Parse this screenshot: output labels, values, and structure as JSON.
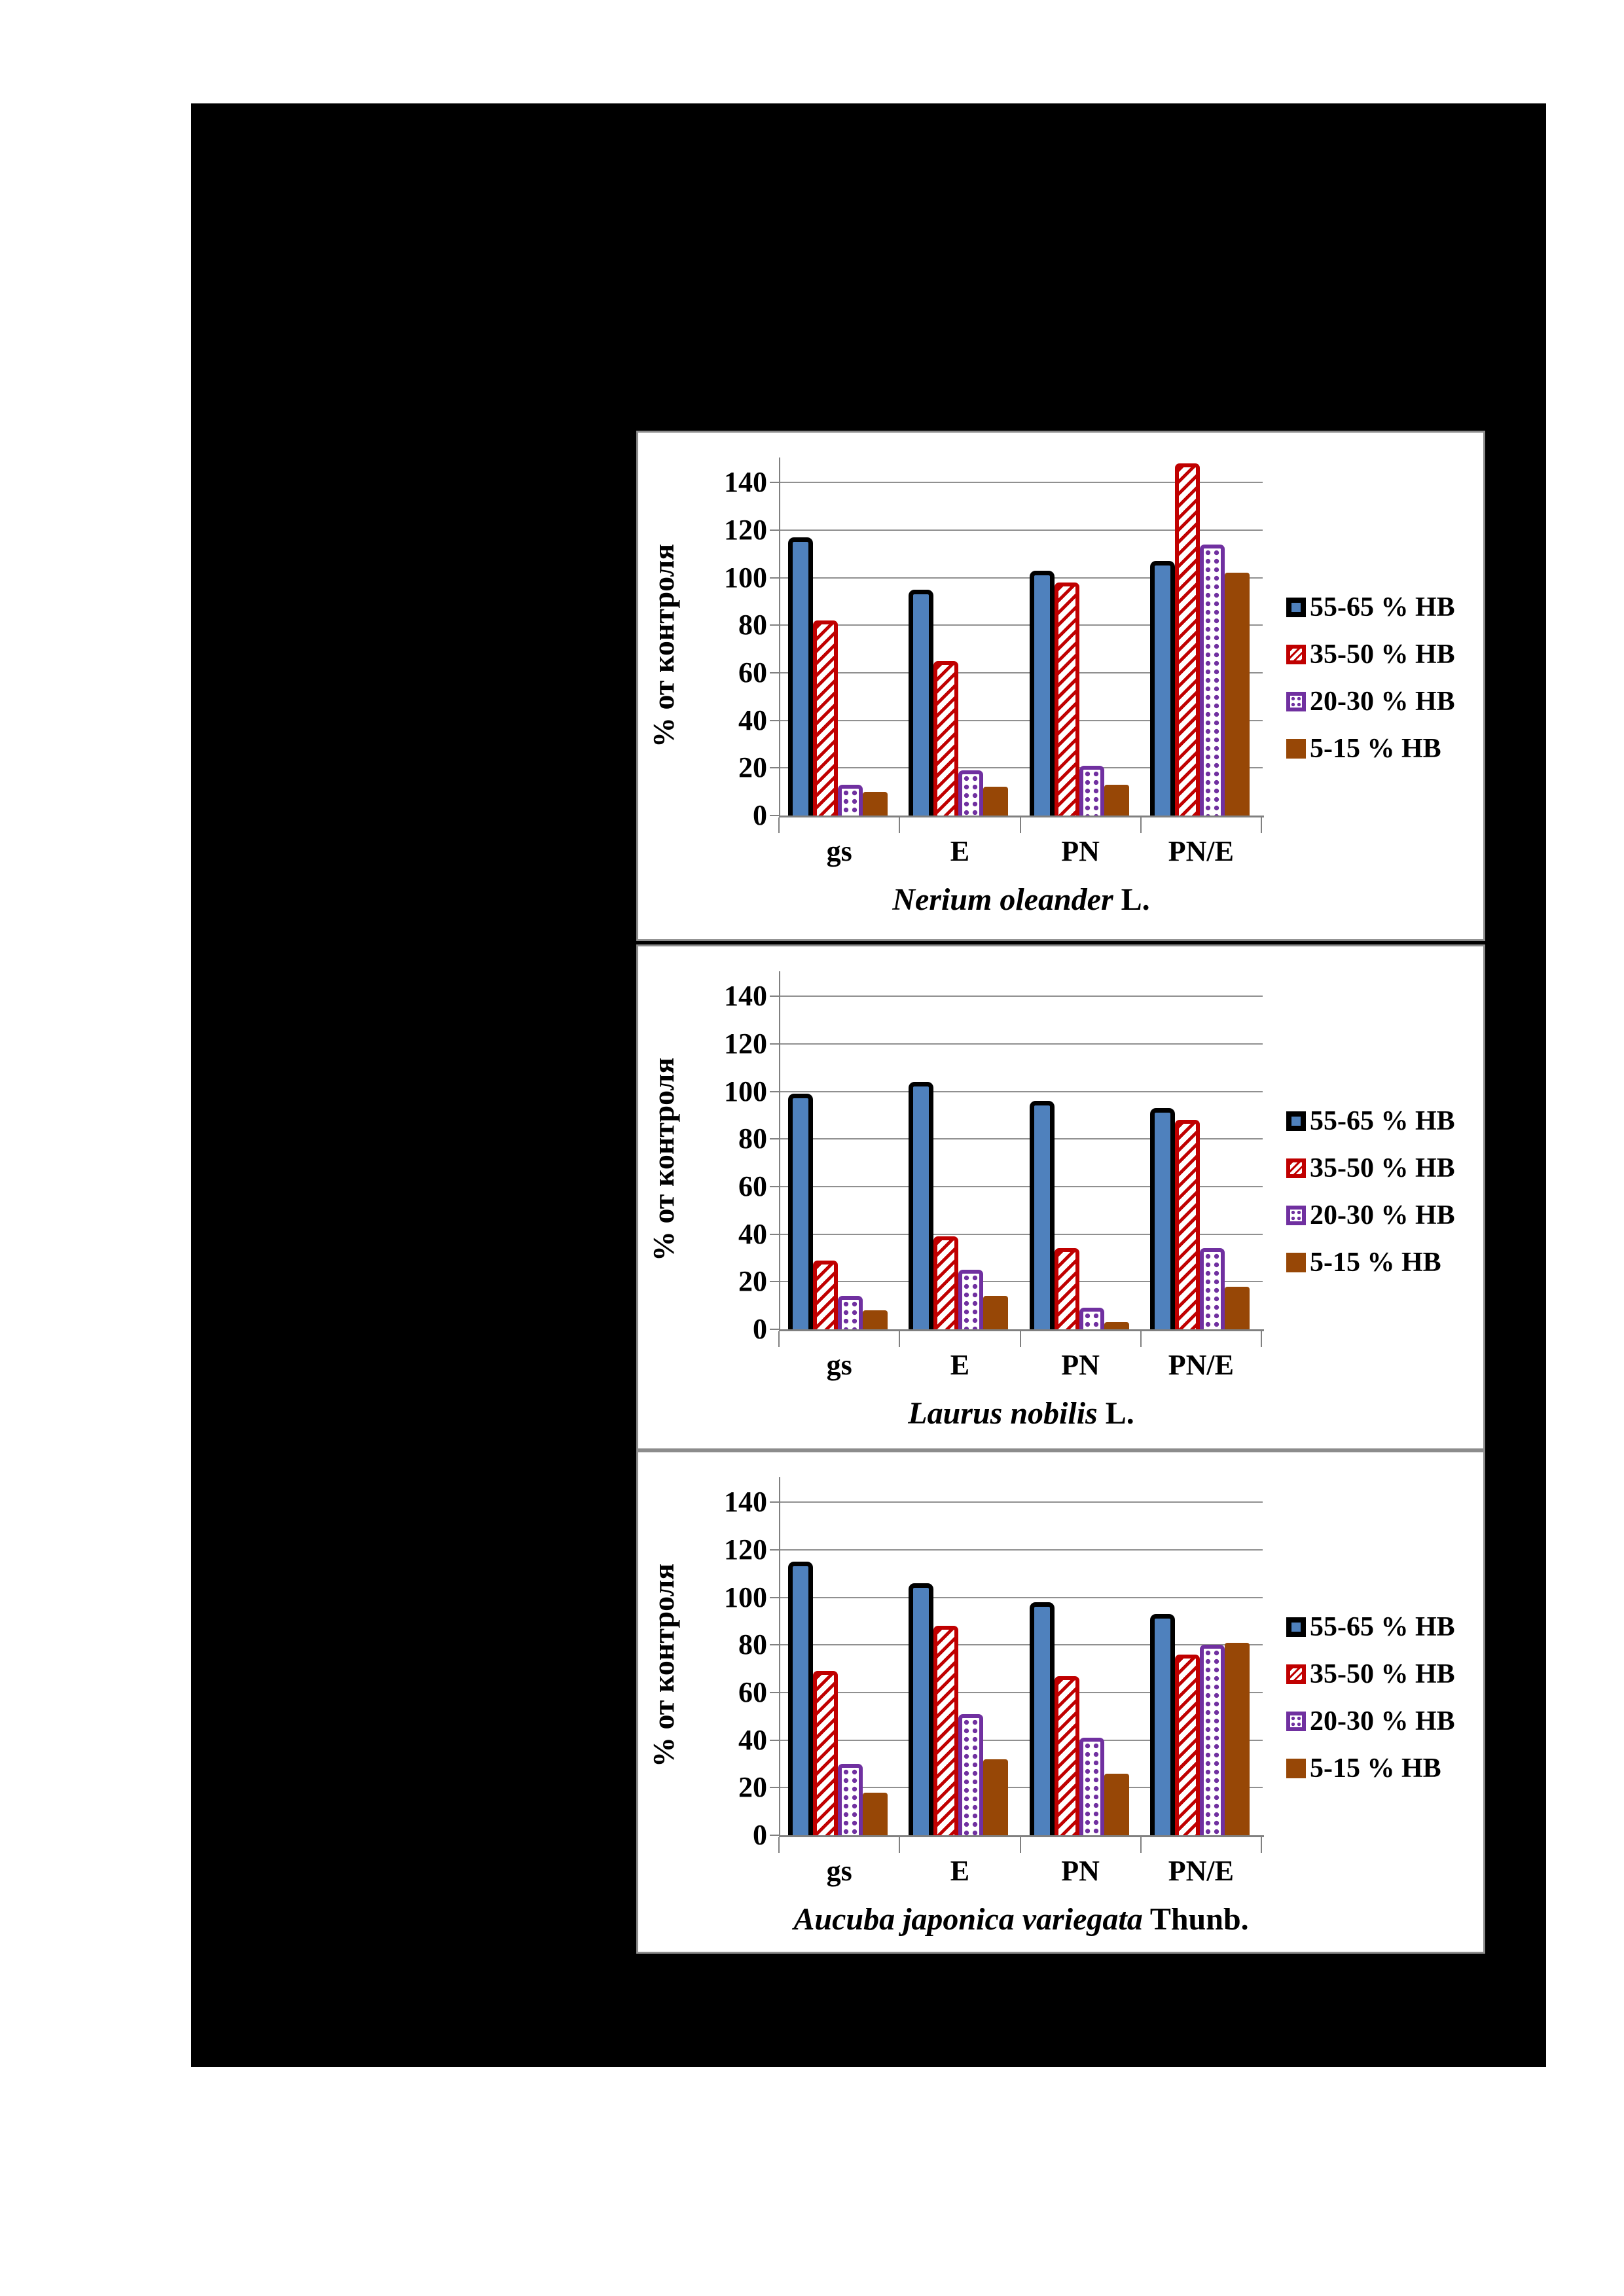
{
  "page": {
    "background_color": "#ffffff",
    "canvas_color": "#000000",
    "panel_border_color": "#8c8c8c",
    "axis_color": "#808080",
    "text_color": "#000000"
  },
  "legend": {
    "position": "right",
    "entries": [
      {
        "label": "55-65 % НВ",
        "fill": "#4F81BD",
        "border": "#000000",
        "pattern": "solid"
      },
      {
        "label": "35-50 % НВ",
        "fill": "#ffffff",
        "border": "#C00000",
        "pattern": "diagonal-stripes",
        "pattern_color": "#C00000"
      },
      {
        "label": "20-30 % НВ",
        "fill": "#ffffff",
        "border": "#7030A0",
        "pattern": "dots",
        "pattern_color": "#7030A0"
      },
      {
        "label": "5-15 % НВ",
        "fill": "#974706",
        "border": "#974706",
        "pattern": "solid"
      }
    ]
  },
  "chart_data": [
    {
      "type": "bar",
      "title_species": "Nerium oleander",
      "title_authority": "L.",
      "ylabel": "% от контроля",
      "xlabel": "",
      "categories": [
        "gs",
        "E",
        "PN",
        "PN/E"
      ],
      "yticks": [
        0,
        20,
        40,
        60,
        80,
        100,
        120,
        140
      ],
      "ylim": [
        0,
        150
      ],
      "grid": true,
      "legend_position": "right",
      "series": [
        {
          "name": "55-65 % НВ",
          "values": [
            117,
            95,
            103,
            107
          ]
        },
        {
          "name": "35-50 % НВ",
          "values": [
            82,
            65,
            98,
            148
          ]
        },
        {
          "name": "20-30 % НВ",
          "values": [
            13,
            19,
            21,
            114
          ]
        },
        {
          "name": "5-15 % НВ",
          "values": [
            10,
            12,
            13,
            102
          ]
        }
      ]
    },
    {
      "type": "bar",
      "title_species": "Laurus nobilis",
      "title_authority": "L.",
      "ylabel": "% от контроля",
      "xlabel": "",
      "categories": [
        "gs",
        "E",
        "PN",
        "PN/E"
      ],
      "yticks": [
        0,
        20,
        40,
        60,
        80,
        100,
        120,
        140
      ],
      "ylim": [
        0,
        150
      ],
      "grid": true,
      "legend_position": "right",
      "series": [
        {
          "name": "55-65 % НВ",
          "values": [
            99,
            104,
            96,
            93
          ]
        },
        {
          "name": "35-50 % НВ",
          "values": [
            29,
            39,
            34,
            88
          ]
        },
        {
          "name": "20-30 % НВ",
          "values": [
            14,
            25,
            9,
            34
          ]
        },
        {
          "name": "5-15 % НВ",
          "values": [
            8,
            14,
            3,
            18
          ]
        }
      ]
    },
    {
      "type": "bar",
      "title_species": "Aucuba japonica variegata",
      "title_authority": "Thunb.",
      "ylabel": "% от контроля",
      "xlabel": "",
      "categories": [
        "gs",
        "E",
        "PN",
        "PN/E"
      ],
      "yticks": [
        0,
        20,
        40,
        60,
        80,
        100,
        120,
        140
      ],
      "ylim": [
        0,
        150
      ],
      "grid": true,
      "legend_position": "right",
      "series": [
        {
          "name": "55-65 % НВ",
          "values": [
            115,
            106,
            98,
            93
          ]
        },
        {
          "name": "35-50 % НВ",
          "values": [
            69,
            88,
            67,
            76
          ]
        },
        {
          "name": "20-30 % НВ",
          "values": [
            30,
            51,
            41,
            80
          ]
        },
        {
          "name": "5-15 % НВ",
          "values": [
            18,
            32,
            26,
            81
          ]
        }
      ]
    }
  ]
}
